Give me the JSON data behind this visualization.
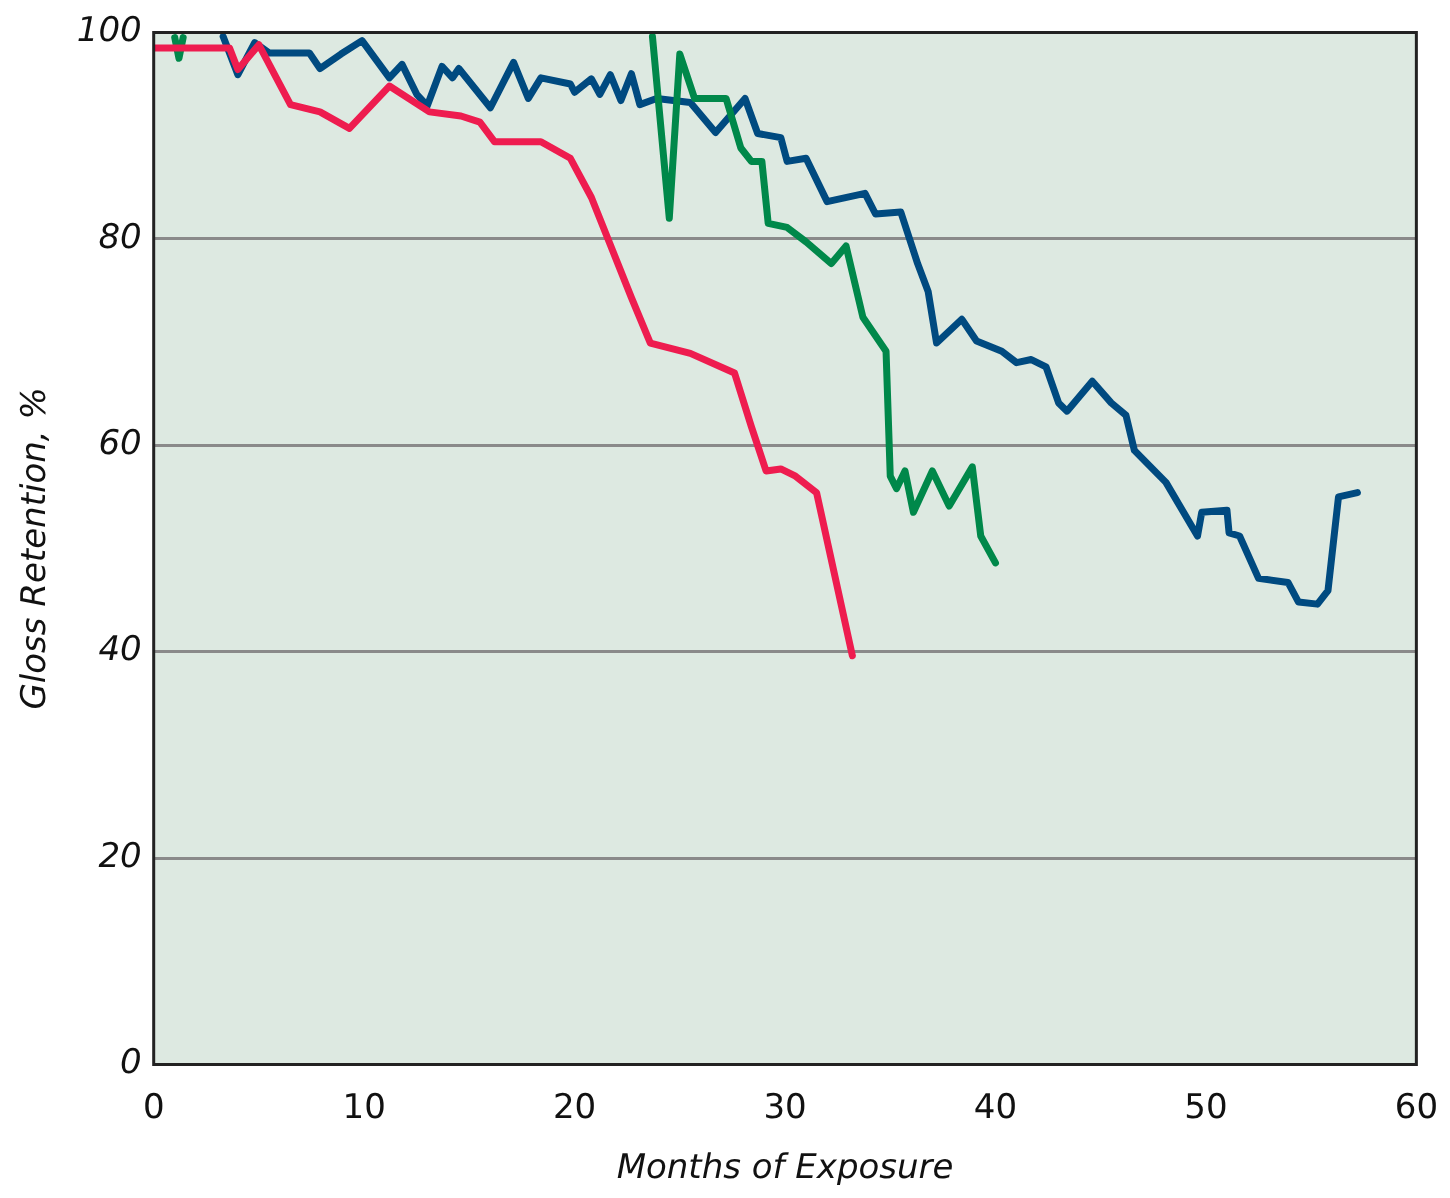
{
  "chart_data": {
    "type": "line",
    "xlabel": "Months of Exposure",
    "ylabel": "Gloss Retention, %",
    "xlim": [
      0,
      60
    ],
    "xticks": [
      0,
      10,
      20,
      30,
      40,
      50,
      60
    ],
    "ylim": [
      0,
      100
    ],
    "yticks": [
      0,
      20,
      40,
      60,
      80,
      100
    ],
    "grid": "y",
    "legend": false,
    "marker": "none",
    "line_style": "solid",
    "series": [
      {
        "color": "#ee1c4f",
        "x": [
          0,
          3.6,
          4.0,
          5.0,
          6.5,
          7.9,
          9.3,
          11.2,
          13.1,
          14.6,
          15.5,
          16.2,
          18.4,
          19.8,
          20.8,
          22.7,
          23.6,
          25.5,
          27.6,
          28.4,
          29.1,
          29.8,
          30.5,
          31.5,
          33.2
        ],
        "values": [
          98.5,
          98.5,
          96.4,
          98.8,
          93,
          92.3,
          90.7,
          94.8,
          92.3,
          91.9,
          91.3,
          89.4,
          89.4,
          87.8,
          84,
          74.3,
          69.9,
          68.9,
          67,
          61.8,
          57.5,
          57.7,
          57,
          55.4,
          39.6
        ]
      },
      {
        "color": "#00884a",
        "x": [
          1.0,
          1.2,
          1.4,
          10,
          23.7,
          24.5,
          25.0,
          25.7,
          27.2,
          27.9,
          28.4,
          28.9,
          29.2,
          30.1,
          31.0,
          32.2,
          32.9,
          33.7,
          34.8,
          35.0,
          35.3,
          35.7,
          36.1,
          37.0,
          37.8,
          38.9,
          39.3,
          40.0
        ],
        "values": [
          99.5,
          97.5,
          99.5,
          null,
          99.6,
          82,
          97.9,
          93.6,
          93.6,
          88.8,
          87.5,
          87.5,
          81.5,
          81.1,
          79.7,
          77.6,
          79.3,
          72.4,
          69.1,
          57,
          55.8,
          57.5,
          53.5,
          57.5,
          54.1,
          57.9,
          51.2,
          48.6
        ]
      },
      {
        "color": "#004a80",
        "x": [
          3.3,
          4.0,
          4.8,
          5.5,
          7.4,
          7.9,
          8.9,
          9.9,
          11.2,
          11.8,
          12.5,
          13.0,
          13.7,
          14.2,
          14.5,
          16.0,
          17.1,
          17.8,
          18.4,
          19.8,
          20.0,
          20.8,
          21.2,
          21.7,
          22.2,
          22.7,
          23.1,
          23.9,
          25.5,
          26.7,
          28.1,
          28.7,
          29.8,
          30.1,
          31.0,
          32.0,
          33.8,
          34.3,
          35.5,
          36.3,
          36.8,
          37.2,
          38.4,
          39.1,
          40.3,
          41.0,
          41.7,
          42.4,
          43.0,
          43.4,
          44.6,
          45.5,
          46.2,
          46.6,
          48.1,
          49.6,
          49.8,
          51.0,
          51.1,
          51.6,
          52.5,
          53.9,
          54.4,
          55.3,
          55.8,
          56.3,
          57.2
        ],
        "values": [
          99.6,
          95.9,
          99,
          98,
          98,
          96.5,
          97.9,
          99.2,
          95.6,
          96.9,
          94,
          92.9,
          96.7,
          95.6,
          96.5,
          92.7,
          97.1,
          93.6,
          95.6,
          95,
          94.2,
          95.5,
          94,
          95.9,
          93.4,
          96,
          93,
          93.6,
          93.2,
          90.3,
          93.6,
          90.2,
          89.8,
          87.5,
          87.8,
          83.6,
          84.4,
          82.4,
          82.6,
          77.6,
          74.9,
          69.9,
          72.2,
          70.1,
          69.1,
          68,
          68.3,
          67.6,
          64.1,
          63.3,
          66.2,
          64.1,
          62.9,
          59.5,
          56.4,
          51.2,
          53.5,
          53.7,
          51.5,
          51.2,
          47.1,
          46.7,
          44.8,
          44.6,
          45.9,
          55,
          55.4
        ]
      }
    ]
  }
}
